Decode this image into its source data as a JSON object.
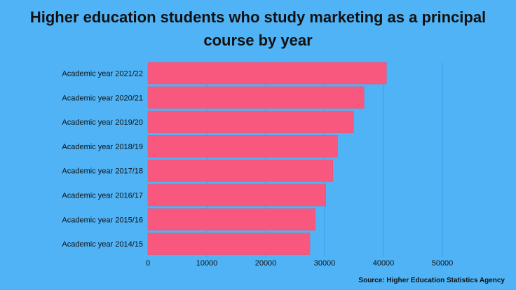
{
  "colors": {
    "background": "#4fb3f6",
    "bar": "#f8587e",
    "gridline": "#3aa0e6",
    "text": "#111111"
  },
  "chart_data": {
    "type": "bar",
    "orientation": "horizontal",
    "title": "Higher education students who study marketing as a principal course by year",
    "xlabel": "",
    "ylabel": "",
    "categories": [
      "Academic year 2021/22",
      "Academic year 2020/21",
      "Academic year 2019/20",
      "Academic year 2018/19",
      "Academic year 2017/18",
      "Academic year 2016/17",
      "Academic year 2015/16",
      "Academic year 2014/15"
    ],
    "values": [
      40500,
      36700,
      34900,
      32200,
      31400,
      30200,
      28400,
      27500
    ],
    "xlim": [
      0,
      50000
    ],
    "xticks": [
      0,
      10000,
      20000,
      30000,
      40000,
      50000
    ],
    "xtick_labels": [
      "0",
      "10000",
      "20000",
      "30000",
      "40000",
      "50000"
    ],
    "grid": true,
    "legend": "none"
  },
  "source": "Source: Higher Education Statistics Agency"
}
